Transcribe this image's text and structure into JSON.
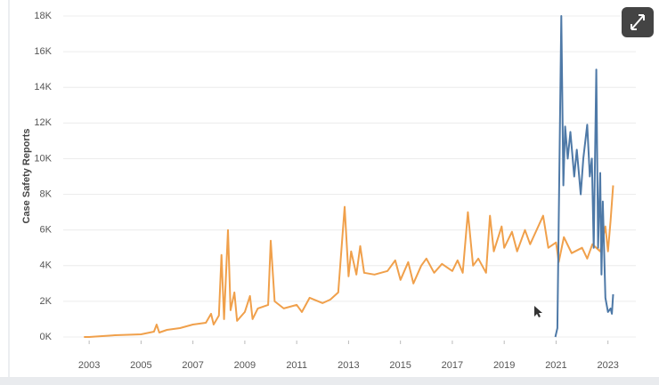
{
  "chart_data": {
    "type": "line",
    "y_label": "Case Safety Reports",
    "xlim": [
      2002,
      2023.8
    ],
    "xticks": [
      2003,
      2005,
      2007,
      2009,
      2011,
      2013,
      2015,
      2017,
      2019,
      2021,
      2023
    ],
    "ylim": [
      0,
      18000
    ],
    "yticks": [
      {
        "value": 0,
        "label": "0K"
      },
      {
        "value": 2000,
        "label": "2K"
      },
      {
        "value": 4000,
        "label": "4K"
      },
      {
        "value": 6000,
        "label": "6K"
      },
      {
        "value": 8000,
        "label": "8K"
      },
      {
        "value": 10000,
        "label": "10K"
      },
      {
        "value": 12000,
        "label": "12K"
      },
      {
        "value": 14000,
        "label": "14K"
      },
      {
        "value": 16000,
        "label": "16K"
      },
      {
        "value": 18000,
        "label": "18K"
      }
    ],
    "grid": true,
    "series": [
      {
        "color": "#f0a04b",
        "x": [
          2002.8,
          2003,
          2004,
          2005,
          2005.5,
          2005.6,
          2005.7,
          2006,
          2006.5,
          2007,
          2007.5,
          2007.7,
          2007.8,
          2008,
          2008.1,
          2008.2,
          2008.35,
          2008.45,
          2008.6,
          2008.7,
          2009,
          2009.2,
          2009.3,
          2009.5,
          2009.9,
          2010,
          2010.15,
          2010.5,
          2011,
          2011.2,
          2011.5,
          2012,
          2012.3,
          2012.6,
          2012.85,
          2013,
          2013.1,
          2013.3,
          2013.45,
          2013.6,
          2014,
          2014.5,
          2014.8,
          2015,
          2015.3,
          2015.5,
          2015.8,
          2016,
          2016.3,
          2016.6,
          2017,
          2017.2,
          2017.4,
          2017.6,
          2017.8,
          2018,
          2018.3,
          2018.45,
          2018.6,
          2018.9,
          2019,
          2019.3,
          2019.5,
          2019.8,
          2020,
          2020.5,
          2020.7,
          2021,
          2021.1,
          2021.3,
          2021.6,
          2022,
          2022.2,
          2022.4,
          2022.7,
          2022.9,
          2023,
          2023.1,
          2023.2
        ],
        "values": [
          0,
          0,
          100,
          150,
          300,
          700,
          250,
          400,
          500,
          700,
          800,
          1300,
          700,
          1200,
          4600,
          1000,
          6000,
          1500,
          2500,
          900,
          1400,
          2300,
          1000,
          1600,
          1800,
          5400,
          2000,
          1600,
          1800,
          1400,
          2200,
          1900,
          2100,
          2500,
          7300,
          3400,
          4800,
          3500,
          5100,
          3600,
          3500,
          3700,
          4300,
          3200,
          4200,
          3000,
          4000,
          4400,
          3600,
          4100,
          3700,
          4300,
          3600,
          7000,
          4000,
          4400,
          3600,
          6800,
          4800,
          6200,
          5000,
          5900,
          4800,
          6000,
          5200,
          6800,
          5000,
          5300,
          4200,
          5600,
          4700,
          5000,
          4400,
          5200,
          4800,
          6200,
          4800,
          6500,
          8500
        ]
      },
      {
        "color": "#4e79a7",
        "x": [
          2020.97,
          2021.05,
          2021.2,
          2021.28,
          2021.35,
          2021.45,
          2021.55,
          2021.7,
          2021.8,
          2021.95,
          2022.05,
          2022.2,
          2022.3,
          2022.38,
          2022.45,
          2022.55,
          2022.62,
          2022.7,
          2022.75,
          2022.8,
          2022.9,
          2023,
          2023.1,
          2023.15,
          2023.2
        ],
        "values": [
          0,
          500,
          18000,
          8500,
          11800,
          10000,
          11500,
          9000,
          10500,
          8000,
          10000,
          11900,
          9000,
          10000,
          5000,
          15000,
          5000,
          9200,
          3500,
          7600,
          2200,
          1400,
          1600,
          1300,
          2400
        ]
      }
    ]
  }
}
